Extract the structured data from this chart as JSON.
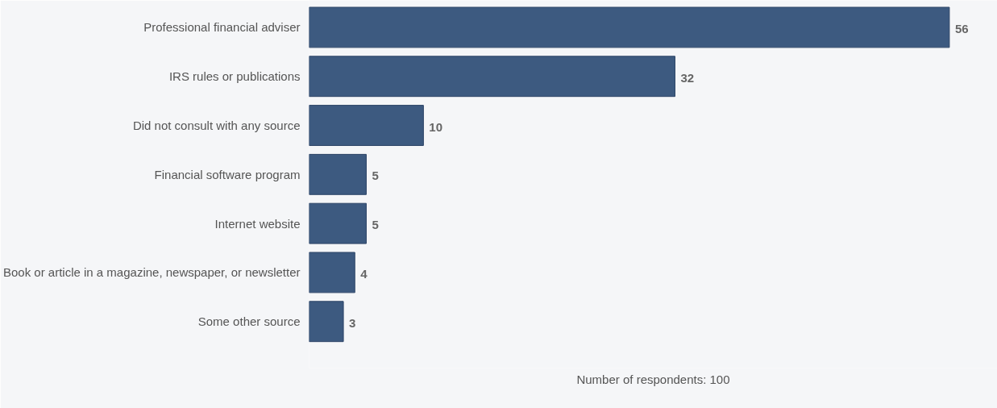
{
  "chart_data": {
    "type": "bar",
    "orientation": "horizontal",
    "categories": [
      "Professional financial adviser",
      "IRS rules or publications",
      "Did not consult with any source",
      "Financial software program",
      "Internet website",
      "Book or article in a magazine, newspaper, or newsletter",
      "Some other source"
    ],
    "values": [
      56,
      32,
      10,
      5,
      5,
      4,
      3
    ],
    "color": "#3d5a80",
    "data_labels": true,
    "xlabel": "Number of respondents: 100",
    "grid": false
  }
}
